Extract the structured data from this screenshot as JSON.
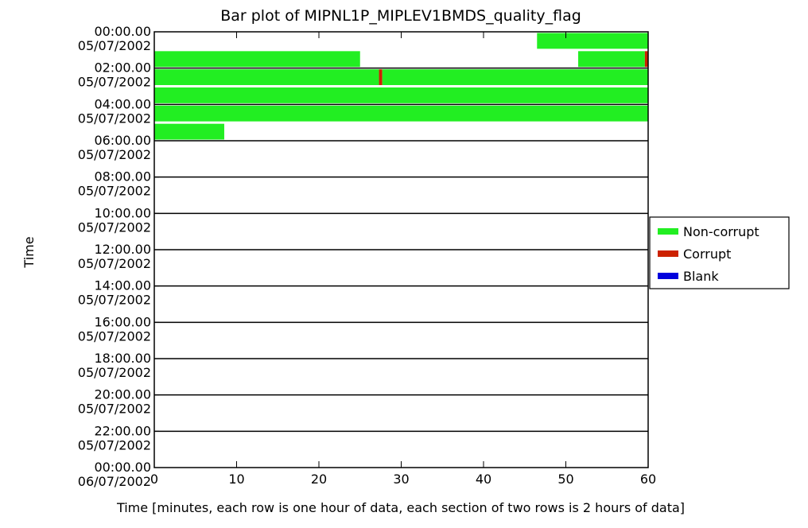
{
  "chart_data": {
    "type": "bar",
    "title": "Bar plot of MIPNL1P_MIPLEV1BMDS_quality_flag",
    "xlabel": "Time [minutes, each row is one hour of data, each section of two rows is 2 hours of data]",
    "ylabel": "Time",
    "xlim": [
      0,
      60
    ],
    "x_ticks": [
      0,
      10,
      20,
      30,
      40,
      50,
      60
    ],
    "x_tick_labels": [
      "0",
      "10",
      "20",
      "30",
      "40",
      "50",
      "60"
    ],
    "y_tick_labels": [
      {
        "time": "00:00.00",
        "date": "05/07/2002"
      },
      {
        "time": "02:00.00",
        "date": "05/07/2002"
      },
      {
        "time": "04:00.00",
        "date": "05/07/2002"
      },
      {
        "time": "06:00.00",
        "date": "05/07/2002"
      },
      {
        "time": "08:00.00",
        "date": "05/07/2002"
      },
      {
        "time": "10:00.00",
        "date": "05/07/2002"
      },
      {
        "time": "12:00.00",
        "date": "05/07/2002"
      },
      {
        "time": "14:00.00",
        "date": "05/07/2002"
      },
      {
        "time": "16:00.00",
        "date": "05/07/2002"
      },
      {
        "time": "18:00.00",
        "date": "05/07/2002"
      },
      {
        "time": "20:00.00",
        "date": "05/07/2002"
      },
      {
        "time": "22:00.00",
        "date": "05/07/2002"
      },
      {
        "time": "00:00.00",
        "date": "06/07/2002"
      }
    ],
    "rows_per_section": 2,
    "num_sections": 12,
    "legend": {
      "placement": "right",
      "entries": [
        {
          "label": "Non-corrupt",
          "color": "#22ee22"
        },
        {
          "label": "Corrupt",
          "color": "#cc2200"
        },
        {
          "label": "Blank",
          "color": "#0000dd"
        }
      ]
    },
    "segments": [
      {
        "hour": 0,
        "start": 46.5,
        "end": 60,
        "flag": "Non-corrupt"
      },
      {
        "hour": 1,
        "start": 0,
        "end": 25,
        "flag": "Non-corrupt"
      },
      {
        "hour": 1,
        "start": 51.5,
        "end": 59.6,
        "flag": "Non-corrupt"
      },
      {
        "hour": 1,
        "start": 59.6,
        "end": 60,
        "flag": "Corrupt"
      },
      {
        "hour": 2,
        "start": 0,
        "end": 27.3,
        "flag": "Non-corrupt"
      },
      {
        "hour": 2,
        "start": 27.3,
        "end": 27.7,
        "flag": "Corrupt"
      },
      {
        "hour": 2,
        "start": 27.7,
        "end": 60,
        "flag": "Non-corrupt"
      },
      {
        "hour": 3,
        "start": 0,
        "end": 60,
        "flag": "Non-corrupt"
      },
      {
        "hour": 4,
        "start": 0,
        "end": 60,
        "flag": "Non-corrupt"
      },
      {
        "hour": 5,
        "start": 0,
        "end": 8.5,
        "flag": "Non-corrupt"
      }
    ]
  }
}
